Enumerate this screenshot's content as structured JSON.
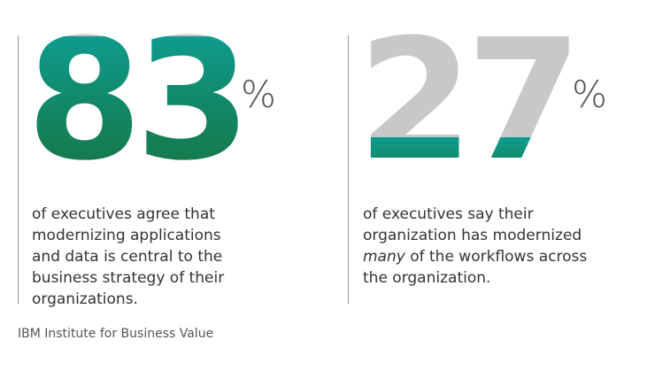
{
  "stats": [
    {
      "number": "83",
      "unit": "%",
      "description_lines": [
        "of executives agree that",
        "modernizing applications",
        "and data is central to the",
        "business strategy of their",
        "organizations."
      ],
      "value_percent": 83
    },
    {
      "number": "27",
      "unit": "%",
      "description_line1": "of executives say their",
      "description_line2": "organization has modernized",
      "description_line3_em": "many",
      "description_line3_rest": " of the workflows across",
      "description_line4": "the organization.",
      "value_percent": 27
    }
  ],
  "source": "IBM Institute for Business Value",
  "colors": {
    "gray_fill": "#c8c8c8",
    "teal": "#0f9b8e",
    "dark_green": "#19713e",
    "divider": "#9a9a9a",
    "text": "#333333"
  }
}
